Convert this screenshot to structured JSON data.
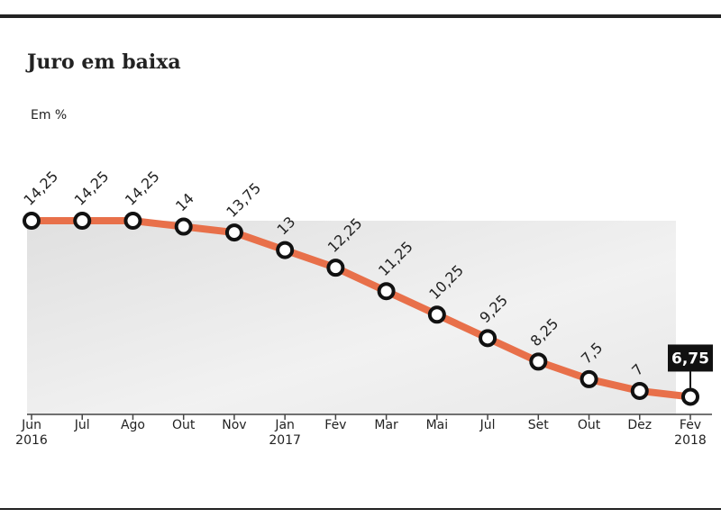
{
  "chart_data": {
    "type": "line",
    "title": "Juro em baixa",
    "subtitle": "Em %",
    "categories": [
      "Jun 2016",
      "Jul",
      "Ago",
      "Out",
      "Nov",
      "Jan 2017",
      "Fev",
      "Mar",
      "Mai",
      "Jul",
      "Set",
      "Out",
      "Dez",
      "Fev 2018"
    ],
    "series": [
      {
        "color": "#e8704a",
        "values": [
          14.25,
          14.25,
          14.25,
          14,
          13.75,
          13,
          12.25,
          11.25,
          10.25,
          9.25,
          8.25,
          7.5,
          7,
          6.75
        ],
        "value_labels": [
          "14,25",
          "14,25",
          "14,25",
          "14",
          "13,75",
          "13",
          "12,25",
          "11,25",
          "10,25",
          "9,25",
          "8,25",
          "7,5",
          "7",
          "6,75"
        ]
      }
    ],
    "ylim": [
      6,
      15
    ]
  }
}
